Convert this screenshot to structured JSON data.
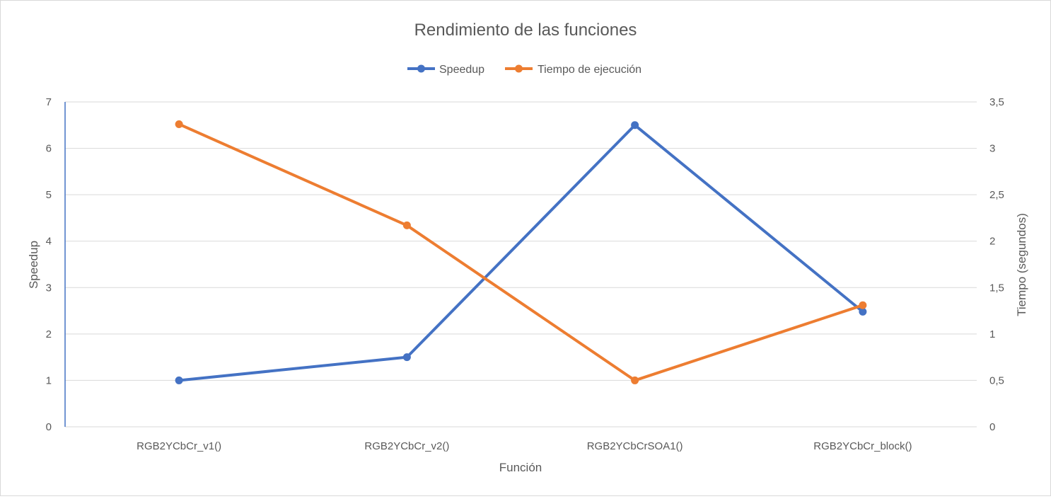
{
  "chart_data": {
    "type": "line",
    "title": "Rendimiento de las funciones",
    "xlabel": "Función",
    "ylabel": "Speedup",
    "y2label": "Tiempo (segundos)",
    "categories": [
      "RGB2YCbCr_v1()",
      "RGB2YCbCr_v2()",
      "RGB2YCbCrSOA1()",
      "RGB2YCbCr_block()"
    ],
    "ylim": [
      0,
      7
    ],
    "y2lim": [
      0,
      3.5
    ],
    "yticks": [
      "0",
      "1",
      "2",
      "3",
      "4",
      "5",
      "6",
      "7"
    ],
    "y2ticks": [
      "0",
      "0,5",
      "1",
      "1,5",
      "2",
      "2,5",
      "3",
      "3,5"
    ],
    "grid": true,
    "legend_position": "top",
    "series": [
      {
        "name": "Speedup",
        "axis": "left",
        "color": "#4472C4",
        "values": [
          1,
          1.5,
          6.5,
          2.48
        ]
      },
      {
        "name": "Tiempo de ejecución",
        "axis": "right",
        "color": "#ED7D31",
        "values": [
          3.26,
          2.17,
          0.5,
          1.31
        ]
      }
    ]
  }
}
